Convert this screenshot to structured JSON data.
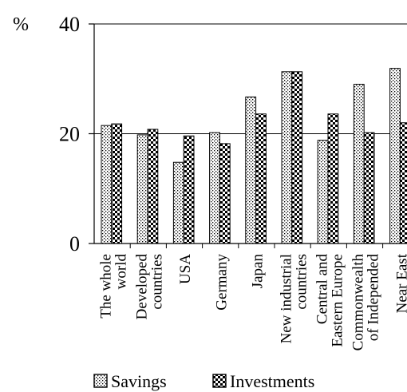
{
  "chart_data": {
    "type": "bar",
    "ylabel": "%",
    "ylim": [
      0,
      40
    ],
    "yticks": [
      0,
      20,
      40
    ],
    "grid": true,
    "legend_position": "bottom",
    "categories": [
      [
        "The whole",
        "world"
      ],
      [
        "Developed",
        "countries"
      ],
      [
        "USA"
      ],
      [
        "Germany"
      ],
      [
        "Japan"
      ],
      [
        "New industrial",
        "countries"
      ],
      [
        "Central and",
        "Eastern Europe"
      ],
      [
        "Commonwealth",
        "of Independed"
      ],
      [
        "Near East"
      ]
    ],
    "series": [
      {
        "name": "Savings",
        "pattern": "dots",
        "values": [
          21.5,
          19.8,
          14.8,
          20.2,
          26.7,
          31.3,
          18.8,
          29.0,
          31.9
        ]
      },
      {
        "name": "Investments",
        "pattern": "checker",
        "values": [
          21.8,
          20.8,
          19.6,
          18.2,
          23.6,
          31.3,
          23.6,
          20.2,
          22.0
        ]
      }
    ]
  }
}
